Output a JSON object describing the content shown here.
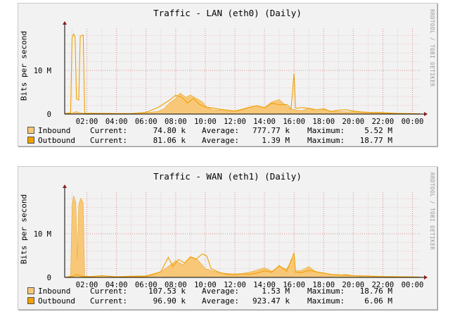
{
  "chart_data": [
    {
      "type": "area",
      "title": "Traffic - LAN (eth0) (Daily)",
      "ylabel": "Bits per second",
      "credit": "RRDTOOL / TOBI OETIKER",
      "y_ticks": [
        {
          "label": "0",
          "value": 0
        },
        {
          "label": "10 M",
          "value": 10000000
        }
      ],
      "ylim": [
        0,
        19500000
      ],
      "x_ticks": [
        "02:00",
        "04:00",
        "06:00",
        "08:00",
        "10:00",
        "12:00",
        "14:00",
        "16:00",
        "18:00",
        "20:00",
        "22:00",
        "00:00"
      ],
      "x_range_hours": [
        0.5,
        24.5
      ],
      "grid": true,
      "series": [
        {
          "name": "Inbound",
          "color": "#f8c878",
          "stroke": "#e8a830",
          "current": "74.80 k",
          "average": "777.77 k",
          "maximum": "5.52 M",
          "points": [
            [
              0.5,
              0
            ],
            [
              1.0,
              200000
            ],
            [
              1.3,
              600000
            ],
            [
              1.5,
              300000
            ],
            [
              2.0,
              100000
            ],
            [
              3.0,
              200000
            ],
            [
              4.0,
              100000
            ],
            [
              5.0,
              150000
            ],
            [
              6.0,
              300000
            ],
            [
              6.8,
              600000
            ],
            [
              7.2,
              1200000
            ],
            [
              7.6,
              2600000
            ],
            [
              8.0,
              3600000
            ],
            [
              8.3,
              4800000
            ],
            [
              8.7,
              3800000
            ],
            [
              9.0,
              4400000
            ],
            [
              9.4,
              3600000
            ],
            [
              9.8,
              2800000
            ],
            [
              10.1,
              1600000
            ],
            [
              10.5,
              1000000
            ],
            [
              11.0,
              900000
            ],
            [
              11.5,
              700000
            ],
            [
              12.0,
              600000
            ],
            [
              12.5,
              1000000
            ],
            [
              13.0,
              1500000
            ],
            [
              13.5,
              1900000
            ],
            [
              14.0,
              1500000
            ],
            [
              14.5,
              2800000
            ],
            [
              15.0,
              3300000
            ],
            [
              15.3,
              2400000
            ],
            [
              15.6,
              1400000
            ],
            [
              16.0,
              1000000
            ],
            [
              16.5,
              800000
            ],
            [
              17.0,
              1300000
            ],
            [
              17.5,
              700000
            ],
            [
              18.0,
              1000000
            ],
            [
              18.5,
              700000
            ],
            [
              19.0,
              600000
            ],
            [
              19.5,
              500000
            ],
            [
              20.0,
              500000
            ],
            [
              20.5,
              400000
            ],
            [
              21.0,
              300000
            ],
            [
              22.0,
              200000
            ],
            [
              23.0,
              100000
            ],
            [
              24.5,
              75000
            ]
          ]
        },
        {
          "name": "Outbound",
          "color": "#f0a000",
          "stroke": "#b86800",
          "current": "81.06 k",
          "average": "1.39 M",
          "maximum": "18.77 M",
          "points": [
            [
              0.5,
              100000
            ],
            [
              0.9,
              300000
            ],
            [
              1.0,
              17500000
            ],
            [
              1.1,
              18300000
            ],
            [
              1.2,
              17700000
            ],
            [
              1.3,
              3500000
            ],
            [
              1.45,
              3200000
            ],
            [
              1.55,
              17800000
            ],
            [
              1.75,
              18100000
            ],
            [
              1.85,
              200000
            ],
            [
              3.0,
              150000
            ],
            [
              5.0,
              100000
            ],
            [
              6.0,
              400000
            ],
            [
              6.8,
              1500000
            ],
            [
              7.5,
              3000000
            ],
            [
              8.0,
              4300000
            ],
            [
              8.4,
              3900000
            ],
            [
              8.8,
              2500000
            ],
            [
              9.2,
              3600000
            ],
            [
              9.6,
              2200000
            ],
            [
              10.0,
              1600000
            ],
            [
              10.5,
              1400000
            ],
            [
              11.0,
              1100000
            ],
            [
              11.5,
              900000
            ],
            [
              12.0,
              700000
            ],
            [
              12.5,
              1100000
            ],
            [
              13.0,
              1600000
            ],
            [
              13.5,
              1900000
            ],
            [
              14.0,
              1400000
            ],
            [
              14.5,
              2500000
            ],
            [
              15.0,
              2100000
            ],
            [
              15.5,
              2200000
            ],
            [
              15.8,
              1200000
            ],
            [
              16.0,
              9300000
            ],
            [
              16.1,
              1300000
            ],
            [
              16.5,
              1500000
            ],
            [
              17.0,
              1300000
            ],
            [
              17.5,
              1000000
            ],
            [
              18.0,
              1200000
            ],
            [
              18.5,
              600000
            ],
            [
              19.0,
              900000
            ],
            [
              19.5,
              1000000
            ],
            [
              20.0,
              700000
            ],
            [
              20.5,
              500000
            ],
            [
              21.0,
              400000
            ],
            [
              22.0,
              300000
            ],
            [
              23.0,
              150000
            ],
            [
              24.5,
              80000
            ]
          ]
        }
      ]
    },
    {
      "type": "area",
      "title": "Traffic - WAN (eth1) (Daily)",
      "ylabel": "Bits per second",
      "credit": "RRDTOOL / TOBI OETIKER",
      "y_ticks": [
        {
          "label": "0",
          "value": 0
        },
        {
          "label": "10 M",
          "value": 10000000
        }
      ],
      "ylim": [
        0,
        19500000
      ],
      "x_ticks": [
        "02:00",
        "04:00",
        "06:00",
        "08:00",
        "10:00",
        "12:00",
        "14:00",
        "16:00",
        "18:00",
        "20:00",
        "22:00",
        "00:00"
      ],
      "x_range_hours": [
        0.5,
        24.5
      ],
      "grid": true,
      "series": [
        {
          "name": "Inbound",
          "color": "#f8c878",
          "stroke": "#e8a830",
          "current": "107.53 k",
          "average": "1.53 M",
          "maximum": "18.76 M",
          "points": [
            [
              0.5,
              0
            ],
            [
              0.9,
              300000
            ],
            [
              1.0,
              16500000
            ],
            [
              1.1,
              18700000
            ],
            [
              1.25,
              17200000
            ],
            [
              1.35,
              4000000
            ],
            [
              1.45,
              16800000
            ],
            [
              1.6,
              18100000
            ],
            [
              1.75,
              17000000
            ],
            [
              1.85,
              300000
            ],
            [
              2.5,
              200000
            ],
            [
              3.0,
              400000
            ],
            [
              4.0,
              200000
            ],
            [
              5.0,
              300000
            ],
            [
              6.0,
              400000
            ],
            [
              7.0,
              1300000
            ],
            [
              7.5,
              2500000
            ],
            [
              8.0,
              3800000
            ],
            [
              8.5,
              2900000
            ],
            [
              9.0,
              4600000
            ],
            [
              9.5,
              4000000
            ],
            [
              10.0,
              2000000
            ],
            [
              10.5,
              1500000
            ],
            [
              11.0,
              1000000
            ],
            [
              11.5,
              900000
            ],
            [
              12.0,
              800000
            ],
            [
              12.5,
              900000
            ],
            [
              13.0,
              1200000
            ],
            [
              13.5,
              1700000
            ],
            [
              14.0,
              2200000
            ],
            [
              14.5,
              1400000
            ],
            [
              15.0,
              2500000
            ],
            [
              15.5,
              1900000
            ],
            [
              16.0,
              4800000
            ],
            [
              16.1,
              1500000
            ],
            [
              16.5,
              1600000
            ],
            [
              17.0,
              2500000
            ],
            [
              17.5,
              1200000
            ],
            [
              18.0,
              1000000
            ],
            [
              18.5,
              700000
            ],
            [
              19.0,
              500000
            ],
            [
              19.5,
              700000
            ],
            [
              20.0,
              400000
            ],
            [
              21.0,
              300000
            ],
            [
              22.0,
              200000
            ],
            [
              23.0,
              150000
            ],
            [
              24.5,
              107000
            ]
          ]
        },
        {
          "name": "Outbound",
          "color": "#f0a000",
          "stroke": "#b86800",
          "current": "96.90 k",
          "average": "923.47 k",
          "maximum": "6.06 M",
          "points": [
            [
              0.5,
              0
            ],
            [
              1.0,
              200000
            ],
            [
              1.3,
              700000
            ],
            [
              1.6,
              300000
            ],
            [
              2.0,
              100000
            ],
            [
              3.0,
              400000
            ],
            [
              4.0,
              100000
            ],
            [
              5.0,
              200000
            ],
            [
              6.0,
              200000
            ],
            [
              7.0,
              1300000
            ],
            [
              7.5,
              4600000
            ],
            [
              7.8,
              2500000
            ],
            [
              8.2,
              4100000
            ],
            [
              8.6,
              3300000
            ],
            [
              9.0,
              4700000
            ],
            [
              9.4,
              4200000
            ],
            [
              9.8,
              5400000
            ],
            [
              10.1,
              4900000
            ],
            [
              10.4,
              2000000
            ],
            [
              11.0,
              1100000
            ],
            [
              11.5,
              700000
            ],
            [
              12.0,
              600000
            ],
            [
              12.5,
              800000
            ],
            [
              13.0,
              700000
            ],
            [
              13.5,
              1000000
            ],
            [
              14.0,
              1500000
            ],
            [
              14.5,
              1200000
            ],
            [
              15.0,
              2700000
            ],
            [
              15.5,
              1400000
            ],
            [
              16.0,
              5600000
            ],
            [
              16.1,
              1200000
            ],
            [
              16.5,
              1100000
            ],
            [
              17.0,
              1600000
            ],
            [
              17.5,
              1300000
            ],
            [
              18.0,
              1000000
            ],
            [
              18.5,
              700000
            ],
            [
              19.0,
              600000
            ],
            [
              19.5,
              500000
            ],
            [
              20.0,
              400000
            ],
            [
              21.0,
              300000
            ],
            [
              22.0,
              200000
            ],
            [
              23.0,
              150000
            ],
            [
              24.5,
              97000
            ]
          ]
        }
      ]
    }
  ],
  "legend_labels": {
    "current": "Current:",
    "average": "Average:",
    "maximum": "Maximum:"
  }
}
